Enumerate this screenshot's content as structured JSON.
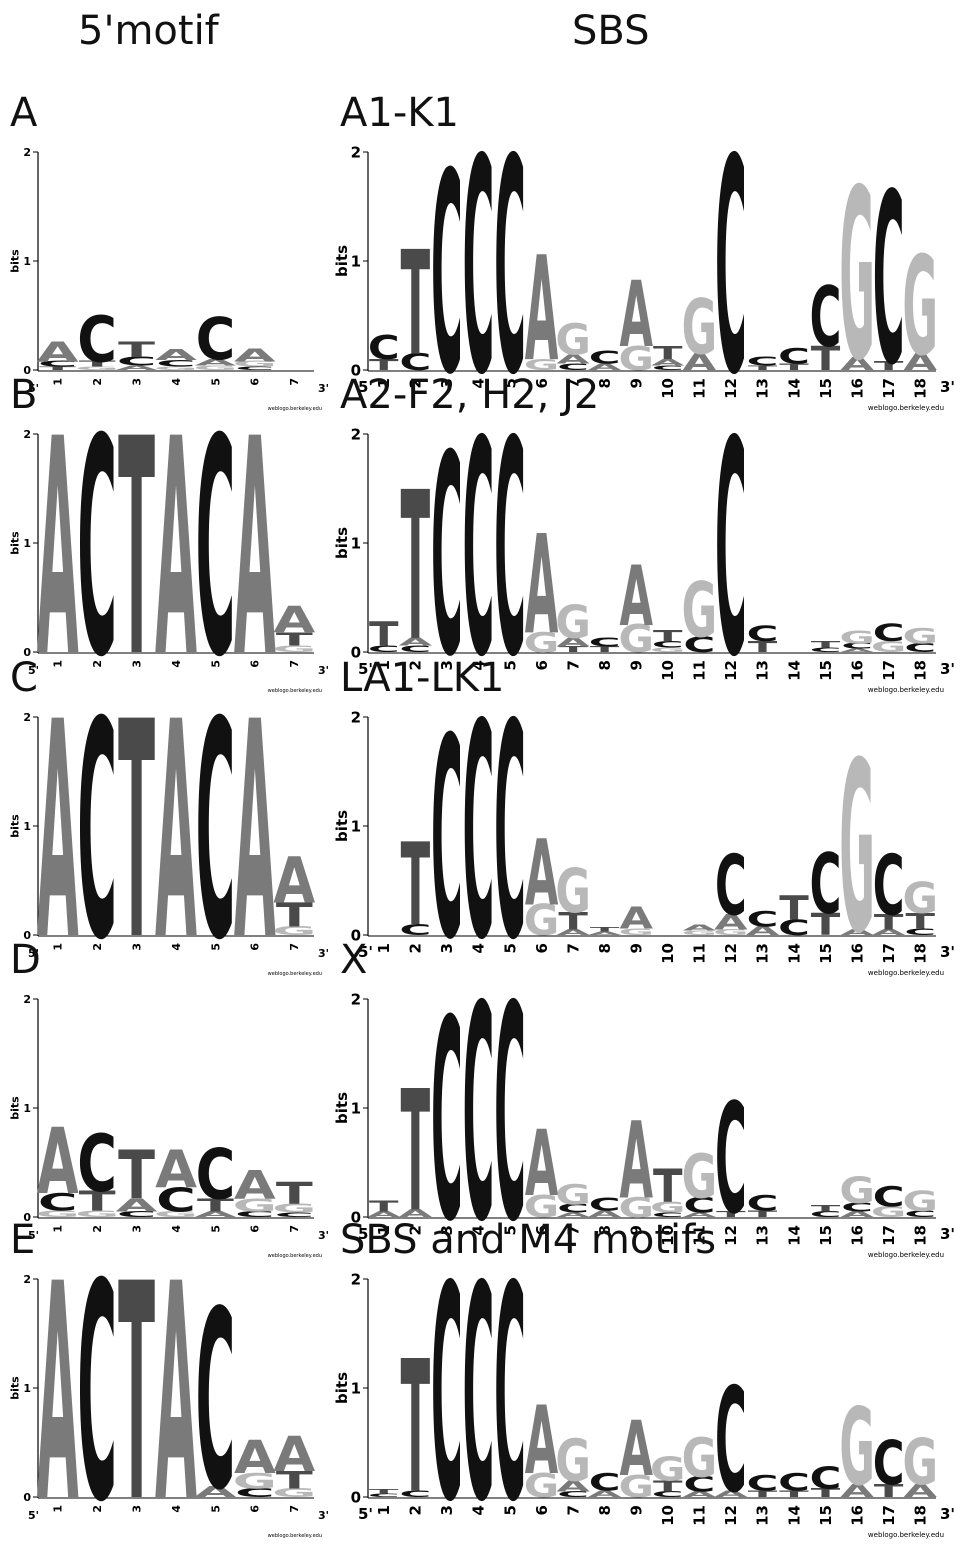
{
  "header": {
    "left_column_title": "5'motif",
    "right_column_title": "SBS"
  },
  "colors": {
    "A": "#7a7a7a",
    "C": "#111111",
    "G": "#b8b8b8",
    "T": "#4a4a4a",
    "axis": "#000000"
  },
  "common": {
    "y_axis_label": "bits",
    "y_ticks": [
      "0",
      "1",
      "2"
    ],
    "five_prime_label": "5'",
    "three_prime_label": "3'",
    "right_credit": "weblogo.berkeley.edu",
    "left_credit": "weblogo.berkeley.edu"
  },
  "rows": [
    {
      "left_label": "A",
      "right_label": "A1-K1",
      "left_logo": [
        [
          [
            "A",
            0.18
          ],
          [
            "C",
            0.05
          ],
          [
            "T",
            0.03
          ]
        ],
        [
          [
            "C",
            0.42
          ],
          [
            "T",
            0.05
          ],
          [
            "G",
            0.03
          ]
        ],
        [
          [
            "T",
            0.14
          ],
          [
            "C",
            0.08
          ],
          [
            "A",
            0.04
          ]
        ],
        [
          [
            "A",
            0.1
          ],
          [
            "C",
            0.06
          ],
          [
            "G",
            0.03
          ]
        ],
        [
          [
            "C",
            0.38
          ],
          [
            "A",
            0.06
          ],
          [
            "G",
            0.04
          ]
        ],
        [
          [
            "A",
            0.12
          ],
          [
            "G",
            0.05
          ],
          [
            "C",
            0.03
          ]
        ],
        []
      ],
      "right_logo": [
        [
          [
            "C",
            0.22
          ],
          [
            "T",
            0.1
          ]
        ],
        [
          [
            "T",
            0.95
          ],
          [
            "C",
            0.15
          ]
        ],
        [
          [
            "C",
            1.82
          ]
        ],
        [
          [
            "C",
            1.95
          ]
        ],
        [
          [
            "C",
            1.95
          ]
        ],
        [
          [
            "A",
            0.95
          ],
          [
            "G",
            0.1
          ]
        ],
        [
          [
            "G",
            0.28
          ],
          [
            "A",
            0.08
          ],
          [
            "C",
            0.06
          ]
        ],
        [
          [
            "C",
            0.12
          ],
          [
            "A",
            0.06
          ]
        ],
        [
          [
            "A",
            0.6
          ],
          [
            "G",
            0.22
          ]
        ],
        [
          [
            "T",
            0.12
          ],
          [
            "A",
            0.06
          ],
          [
            "C",
            0.04
          ]
        ],
        [
          [
            "G",
            0.5
          ],
          [
            "A",
            0.15
          ]
        ],
        [
          [
            "C",
            1.95
          ]
        ],
        [
          [
            "C",
            0.08
          ],
          [
            "T",
            0.04
          ]
        ],
        [
          [
            "C",
            0.14
          ],
          [
            "T",
            0.06
          ]
        ],
        [
          [
            "C",
            0.55
          ],
          [
            "T",
            0.22
          ]
        ],
        [
          [
            "G",
            1.55
          ],
          [
            "A",
            0.12
          ]
        ],
        [
          [
            "C",
            1.55
          ],
          [
            "T",
            0.08
          ]
        ],
        [
          [
            "G",
            0.9
          ],
          [
            "A",
            0.15
          ]
        ]
      ]
    },
    {
      "left_label": "B",
      "right_label": "A2-F2, H2, J2",
      "left_logo": [
        [
          [
            "A",
            1.97
          ]
        ],
        [
          [
            "C",
            1.97
          ]
        ],
        [
          [
            "T",
            1.97
          ]
        ],
        [
          [
            "A",
            1.97
          ]
        ],
        [
          [
            "C",
            1.97
          ]
        ],
        [
          [
            "A",
            1.97
          ]
        ],
        [
          [
            "A",
            0.24
          ],
          [
            "T",
            0.12
          ],
          [
            "G",
            0.06
          ]
        ]
      ],
      "right_logo": [
        [
          [
            "T",
            0.22
          ],
          [
            "C",
            0.06
          ]
        ],
        [
          [
            "T",
            1.35
          ],
          [
            "A",
            0.07
          ],
          [
            "C",
            0.06
          ]
        ],
        [
          [
            "C",
            1.82
          ]
        ],
        [
          [
            "C",
            1.95
          ]
        ],
        [
          [
            "C",
            1.95
          ]
        ],
        [
          [
            "A",
            0.9
          ],
          [
            "G",
            0.18
          ]
        ],
        [
          [
            "G",
            0.3
          ],
          [
            "A",
            0.08
          ],
          [
            "T",
            0.05
          ]
        ],
        [
          [
            "C",
            0.08
          ],
          [
            "T",
            0.05
          ]
        ],
        [
          [
            "A",
            0.55
          ],
          [
            "G",
            0.25
          ]
        ],
        [
          [
            "T",
            0.1
          ],
          [
            "C",
            0.06
          ],
          [
            "G",
            0.04
          ]
        ],
        [
          [
            "G",
            0.5
          ],
          [
            "C",
            0.14
          ]
        ],
        [
          [
            "C",
            1.95
          ]
        ],
        [
          [
            "C",
            0.14
          ],
          [
            "T",
            0.1
          ]
        ],
        [],
        [
          [
            "T",
            0.06
          ],
          [
            "C",
            0.04
          ]
        ],
        [
          [
            "G",
            0.12
          ],
          [
            "C",
            0.05
          ],
          [
            "A",
            0.03
          ]
        ],
        [
          [
            "C",
            0.16
          ],
          [
            "G",
            0.1
          ]
        ],
        [
          [
            "G",
            0.14
          ],
          [
            "C",
            0.08
          ]
        ]
      ]
    },
    {
      "left_label": "C",
      "right_label": "LA1-LK1",
      "left_logo": [
        [
          [
            "A",
            1.97
          ]
        ],
        [
          [
            "C",
            1.97
          ]
        ],
        [
          [
            "T",
            1.97
          ]
        ],
        [
          [
            "A",
            1.97
          ]
        ],
        [
          [
            "C",
            1.97
          ]
        ],
        [
          [
            "A",
            1.97
          ]
        ],
        [
          [
            "A",
            0.42
          ],
          [
            "T",
            0.22
          ],
          [
            "G",
            0.08
          ]
        ]
      ],
      "right_logo": [
        [],
        [
          [
            "T",
            0.75
          ],
          [
            "C",
            0.1
          ]
        ],
        [
          [
            "C",
            1.82
          ]
        ],
        [
          [
            "C",
            1.95
          ]
        ],
        [
          [
            "C",
            1.95
          ]
        ],
        [
          [
            "A",
            0.6
          ],
          [
            "G",
            0.28
          ]
        ],
        [
          [
            "G",
            0.4
          ],
          [
            "T",
            0.16
          ],
          [
            "A",
            0.05
          ]
        ],
        [
          [
            "T",
            0.04
          ],
          [
            "A",
            0.03
          ]
        ],
        [
          [
            "A",
            0.2
          ],
          [
            "G",
            0.06
          ]
        ],
        [],
        [
          [
            "A",
            0.05
          ],
          [
            "G",
            0.04
          ]
        ],
        [
          [
            "C",
            0.55
          ],
          [
            "A",
            0.14
          ],
          [
            "G",
            0.05
          ]
        ],
        [
          [
            "C",
            0.14
          ],
          [
            "A",
            0.08
          ]
        ],
        [
          [
            "T",
            0.22
          ],
          [
            "C",
            0.14
          ]
        ],
        [
          [
            "C",
            0.55
          ],
          [
            "T",
            0.2
          ]
        ],
        [
          [
            "G",
            1.55
          ],
          [
            "A",
            0.05
          ]
        ],
        [
          [
            "C",
            0.55
          ],
          [
            "T",
            0.14
          ],
          [
            "A",
            0.05
          ]
        ],
        [
          [
            "G",
            0.28
          ],
          [
            "T",
            0.14
          ],
          [
            "C",
            0.06
          ]
        ]
      ]
    },
    {
      "left_label": "D",
      "right_label": "X",
      "left_logo": [
        [
          [
            "A",
            0.6
          ],
          [
            "C",
            0.16
          ],
          [
            "G",
            0.06
          ]
        ],
        [
          [
            "C",
            0.52
          ],
          [
            "T",
            0.18
          ],
          [
            "G",
            0.06
          ]
        ],
        [
          [
            "T",
            0.44
          ],
          [
            "A",
            0.12
          ],
          [
            "C",
            0.05
          ]
        ],
        [
          [
            "A",
            0.34
          ],
          [
            "C",
            0.22
          ],
          [
            "G",
            0.05
          ]
        ],
        [
          [
            "C",
            0.46
          ],
          [
            "T",
            0.12
          ],
          [
            "A",
            0.05
          ]
        ],
        [
          [
            "A",
            0.26
          ],
          [
            "G",
            0.12
          ],
          [
            "C",
            0.05
          ]
        ],
        [
          [
            "T",
            0.2
          ],
          [
            "G",
            0.08
          ],
          [
            "C",
            0.04
          ]
        ]
      ],
      "right_logo": [
        [
          [
            "T",
            0.1
          ],
          [
            "A",
            0.05
          ]
        ],
        [
          [
            "T",
            1.1
          ],
          [
            "A",
            0.07
          ]
        ],
        [
          [
            "C",
            1.82
          ]
        ],
        [
          [
            "C",
            1.95
          ]
        ],
        [
          [
            "C",
            1.95
          ]
        ],
        [
          [
            "A",
            0.6
          ],
          [
            "G",
            0.2
          ]
        ],
        [
          [
            "G",
            0.18
          ],
          [
            "C",
            0.08
          ],
          [
            "A",
            0.04
          ]
        ],
        [
          [
            "C",
            0.12
          ],
          [
            "A",
            0.06
          ]
        ],
        [
          [
            "A",
            0.7
          ],
          [
            "G",
            0.18
          ]
        ],
        [
          [
            "T",
            0.3
          ],
          [
            "G",
            0.1
          ],
          [
            "C",
            0.04
          ]
        ],
        [
          [
            "G",
            0.4
          ],
          [
            "C",
            0.14
          ],
          [
            "A",
            0.04
          ]
        ],
        [
          [
            "C",
            1.0
          ],
          [
            "T",
            0.05
          ]
        ],
        [
          [
            "C",
            0.14
          ],
          [
            "T",
            0.06
          ]
        ],
        [],
        [
          [
            "T",
            0.06
          ],
          [
            "C",
            0.05
          ]
        ],
        [
          [
            "G",
            0.24
          ],
          [
            "C",
            0.08
          ],
          [
            "A",
            0.05
          ]
        ],
        [
          [
            "C",
            0.18
          ],
          [
            "G",
            0.1
          ]
        ],
        [
          [
            "G",
            0.18
          ],
          [
            "C",
            0.06
          ]
        ]
      ]
    },
    {
      "left_label": "E",
      "right_label": "SBS and M4 motifs",
      "left_logo": [
        [
          [
            "A",
            1.97
          ]
        ],
        [
          [
            "C",
            1.97
          ]
        ],
        [
          [
            "T",
            1.97
          ]
        ],
        [
          [
            "A",
            1.97
          ]
        ],
        [
          [
            "C",
            1.62
          ],
          [
            "A",
            0.1
          ]
        ],
        [
          [
            "A",
            0.3
          ],
          [
            "G",
            0.14
          ],
          [
            "C",
            0.08
          ]
        ],
        [
          [
            "A",
            0.32
          ],
          [
            "T",
            0.16
          ],
          [
            "G",
            0.08
          ]
        ]
      ],
      "right_logo": [
        [
          [
            "T",
            0.04
          ],
          [
            "C",
            0.03
          ]
        ],
        [
          [
            "T",
            1.2
          ],
          [
            "C",
            0.06
          ]
        ],
        [
          [
            "C",
            1.95
          ]
        ],
        [
          [
            "C",
            1.95
          ]
        ],
        [
          [
            "C",
            1.95
          ]
        ],
        [
          [
            "A",
            0.62
          ],
          [
            "G",
            0.22
          ]
        ],
        [
          [
            "G",
            0.38
          ],
          [
            "A",
            0.1
          ],
          [
            "C",
            0.05
          ]
        ],
        [
          [
            "C",
            0.16
          ],
          [
            "A",
            0.06
          ]
        ],
        [
          [
            "A",
            0.5
          ],
          [
            "G",
            0.2
          ]
        ],
        [
          [
            "G",
            0.22
          ],
          [
            "T",
            0.1
          ],
          [
            "C",
            0.05
          ]
        ],
        [
          [
            "G",
            0.36
          ],
          [
            "C",
            0.14
          ],
          [
            "A",
            0.05
          ]
        ],
        [
          [
            "C",
            0.95
          ],
          [
            "A",
            0.06
          ]
        ],
        [
          [
            "C",
            0.14
          ],
          [
            "T",
            0.06
          ]
        ],
        [
          [
            "C",
            0.16
          ],
          [
            "T",
            0.06
          ]
        ],
        [
          [
            "C",
            0.2
          ],
          [
            "T",
            0.08
          ]
        ],
        [
          [
            "G",
            0.7
          ],
          [
            "A",
            0.12
          ]
        ],
        [
          [
            "C",
            0.4
          ],
          [
            "T",
            0.12
          ]
        ],
        [
          [
            "G",
            0.42
          ],
          [
            "A",
            0.12
          ]
        ]
      ]
    }
  ]
}
